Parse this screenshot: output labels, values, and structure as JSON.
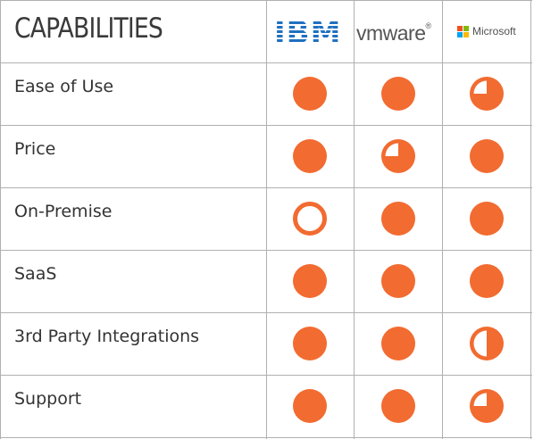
{
  "header": {
    "title": "CAPABILITIES",
    "vendors": [
      {
        "name": "IBM",
        "logo_text": "IBM",
        "color": "#1f70c1"
      },
      {
        "name": "VMware",
        "logo_text": "vmware",
        "mark": "®",
        "color": "#555555"
      },
      {
        "name": "Microsoft",
        "logo_text": "Microsoft",
        "color": "#505050",
        "tile_colors": [
          "#f25022",
          "#7fba00",
          "#00a4ef",
          "#ffb900"
        ]
      }
    ]
  },
  "rating_color": "#f26b30",
  "rows": [
    {
      "label": "Ease of Use",
      "ratings": [
        1,
        1,
        0.75
      ]
    },
    {
      "label": "Price",
      "ratings": [
        1,
        0.75,
        1
      ]
    },
    {
      "label": "On-Premise",
      "ratings": [
        0,
        1,
        1
      ]
    },
    {
      "label": "SaaS",
      "ratings": [
        1,
        1,
        1
      ]
    },
    {
      "label": "3rd Party Integrations",
      "ratings": [
        1,
        1,
        0.5
      ]
    },
    {
      "label": "Support",
      "ratings": [
        1,
        1,
        0.75
      ]
    }
  ]
}
